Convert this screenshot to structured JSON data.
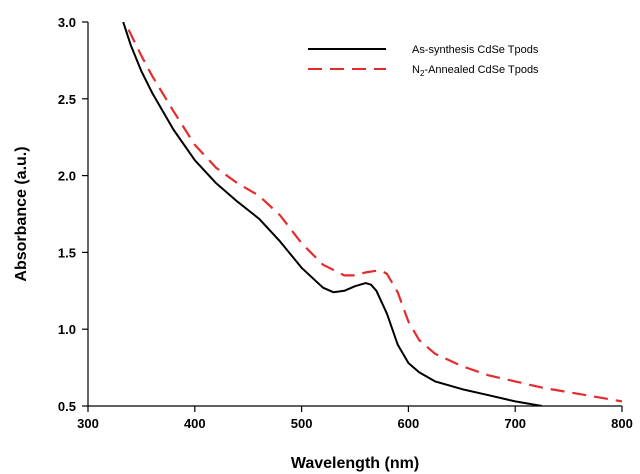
{
  "chart_data": {
    "type": "line",
    "xlabel": "Wavelength (nm)",
    "ylabel": "Absorbance (a.u.)",
    "xlim": [
      300,
      800
    ],
    "ylim": [
      0.5,
      3.0
    ],
    "x_ticks": [
      "300",
      "400",
      "500",
      "600",
      "700",
      "800"
    ],
    "y_ticks": [
      "0.5",
      "1.0",
      "1.5",
      "2.0",
      "2.5",
      "3.0"
    ],
    "grid": false,
    "legend_position": "top-right",
    "series": [
      {
        "name": "As-synthesis CdSe Tpods",
        "color": "#000000",
        "style": "solid",
        "x": [
          333,
          340,
          350,
          360,
          380,
          400,
          420,
          440,
          460,
          480,
          500,
          520,
          530,
          540,
          550,
          560,
          565,
          570,
          580,
          590,
          600,
          610,
          625,
          650,
          675,
          700,
          725
        ],
        "y": [
          3.0,
          2.85,
          2.68,
          2.54,
          2.3,
          2.1,
          1.95,
          1.83,
          1.72,
          1.57,
          1.4,
          1.27,
          1.24,
          1.25,
          1.28,
          1.3,
          1.29,
          1.25,
          1.1,
          0.9,
          0.78,
          0.72,
          0.66,
          0.61,
          0.57,
          0.53,
          0.5
        ]
      },
      {
        "name": "N2-Annealed CdSe Tpods",
        "name_sub": "2",
        "color": "#e52b2b",
        "style": "dashed",
        "x": [
          338,
          350,
          360,
          380,
          400,
          420,
          440,
          460,
          480,
          500,
          520,
          540,
          550,
          560,
          570,
          575,
          580,
          590,
          600,
          610,
          625,
          650,
          675,
          700,
          725,
          750,
          800
        ],
        "y": [
          2.95,
          2.78,
          2.65,
          2.42,
          2.2,
          2.05,
          1.95,
          1.87,
          1.74,
          1.56,
          1.42,
          1.35,
          1.35,
          1.37,
          1.38,
          1.38,
          1.36,
          1.24,
          1.05,
          0.93,
          0.84,
          0.76,
          0.7,
          0.66,
          0.62,
          0.59,
          0.53
        ]
      }
    ]
  }
}
